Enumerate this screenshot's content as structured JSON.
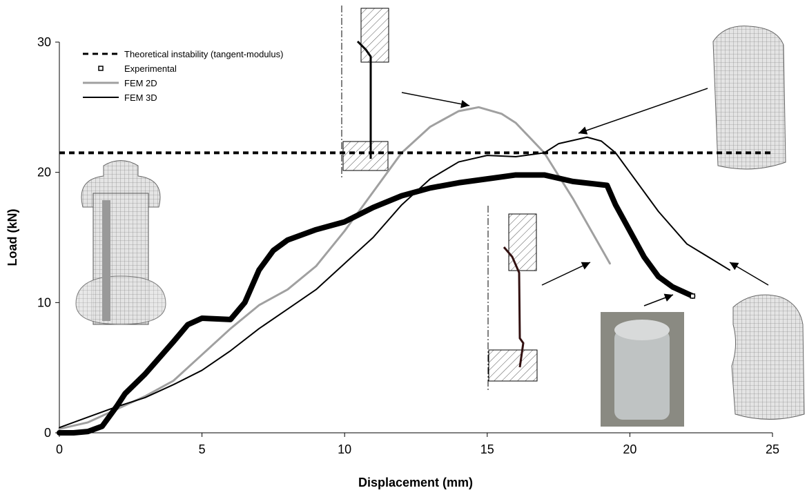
{
  "chart_data": {
    "type": "line",
    "x_label": "Displacement (mm)",
    "y_label": "Load (kN)",
    "xlim": [
      0,
      25
    ],
    "ylim": [
      0,
      30
    ],
    "xticks": [
      0,
      5,
      10,
      15,
      20,
      25
    ],
    "yticks": [
      0,
      10,
      20,
      30
    ],
    "grid": false,
    "legend": "upper left",
    "series": [
      {
        "name": "Theoretical instability (tangent-modulus)",
        "color": "#000000",
        "linestyle": "dashed",
        "linewidth": 4,
        "x": [
          0,
          25
        ],
        "values": [
          21.5,
          21.5
        ]
      },
      {
        "name": "Experimental",
        "color": "#000000",
        "linestyle": "solid",
        "linewidth": 8,
        "marker": "square",
        "x": [
          0,
          0.5,
          1,
          1.5,
          2,
          2.3,
          3,
          4,
          4.5,
          5,
          6,
          6.5,
          7,
          7.5,
          8,
          9,
          10,
          11,
          12,
          13,
          14,
          15,
          16,
          17,
          18,
          19.2,
          19.5,
          20,
          20.5,
          21,
          21.5,
          22.2
        ],
        "values": [
          0,
          0,
          0.1,
          0.5,
          2,
          3,
          4.5,
          7,
          8.3,
          8.8,
          8.7,
          10,
          12.5,
          14,
          14.8,
          15.6,
          16.2,
          17.3,
          18.2,
          18.8,
          19.2,
          19.5,
          19.8,
          19.8,
          19.3,
          19,
          17.5,
          15.5,
          13.5,
          12,
          11.2,
          10.5
        ]
      },
      {
        "name": "FEM 2D",
        "color": "#a0a0a0",
        "linestyle": "solid",
        "linewidth": 3,
        "x": [
          0,
          1,
          2,
          3,
          4,
          5,
          6,
          7,
          8,
          9,
          10,
          11,
          12,
          13,
          14,
          14.7,
          15.5,
          16,
          17,
          18,
          19.3
        ],
        "values": [
          0.3,
          0.8,
          1.8,
          2.8,
          4,
          6,
          8,
          9.8,
          11,
          12.8,
          15.5,
          18.5,
          21.5,
          23.5,
          24.7,
          25,
          24.5,
          23.8,
          21.5,
          18,
          13
        ]
      },
      {
        "name": "FEM 3D",
        "color": "#000000",
        "linestyle": "solid",
        "linewidth": 2,
        "x": [
          0,
          1,
          2,
          3,
          4,
          5,
          6,
          7,
          8,
          9,
          10,
          11,
          12,
          13,
          14,
          15,
          16,
          17,
          17.5,
          18.5,
          19,
          19.5,
          20,
          21,
          22,
          23.5
        ],
        "values": [
          0.4,
          1.2,
          2,
          2.7,
          3.7,
          4.8,
          6.3,
          8,
          9.5,
          11,
          13,
          15,
          17.5,
          19.5,
          20.8,
          21.3,
          21.2,
          21.5,
          22.2,
          22.7,
          22.4,
          21.5,
          20,
          17,
          14.5,
          12.5
        ]
      }
    ]
  }
}
